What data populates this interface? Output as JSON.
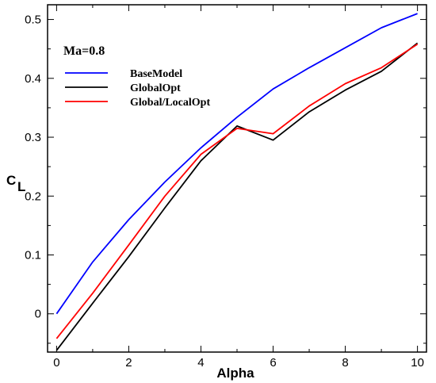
{
  "chart_data": {
    "type": "line",
    "xlabel": "Alpha",
    "ylabel": "C",
    "ylabel_sub": "L",
    "annotation": "Ma=0.8",
    "xlim": [
      -0.25,
      10.25
    ],
    "ylim": [
      -0.065,
      0.525
    ],
    "xticks": [
      0,
      2,
      4,
      6,
      8,
      10
    ],
    "yticks": [
      0,
      0.1,
      0.2,
      0.3,
      0.4,
      0.5
    ],
    "ytick_labels": [
      "0",
      "0.1",
      "0.2",
      "0.3",
      "0.4",
      "0.5"
    ],
    "grid": false,
    "legend_position": "top-left",
    "series": [
      {
        "name": "BaseModel",
        "color": "#0000ff",
        "x": [
          0,
          1,
          2,
          3,
          4,
          5,
          6,
          7,
          8,
          9,
          10
        ],
        "y": [
          0.0,
          0.088,
          0.16,
          0.224,
          0.282,
          0.334,
          0.382,
          0.418,
          0.452,
          0.486,
          0.51
        ]
      },
      {
        "name": "GlobalOpt",
        "color": "#000000",
        "x": [
          0,
          1,
          2,
          3,
          4,
          5,
          6,
          7,
          8,
          9,
          10
        ],
        "y": [
          -0.062,
          0.018,
          0.097,
          0.18,
          0.26,
          0.319,
          0.295,
          0.343,
          0.38,
          0.412,
          0.46
        ]
      },
      {
        "name": "Global/LocalOpt",
        "color": "#ff0000",
        "x": [
          0,
          1,
          2,
          3,
          4,
          5,
          6,
          7,
          8,
          9,
          10
        ],
        "y": [
          -0.042,
          0.035,
          0.117,
          0.2,
          0.271,
          0.315,
          0.306,
          0.353,
          0.391,
          0.418,
          0.458
        ]
      }
    ]
  }
}
